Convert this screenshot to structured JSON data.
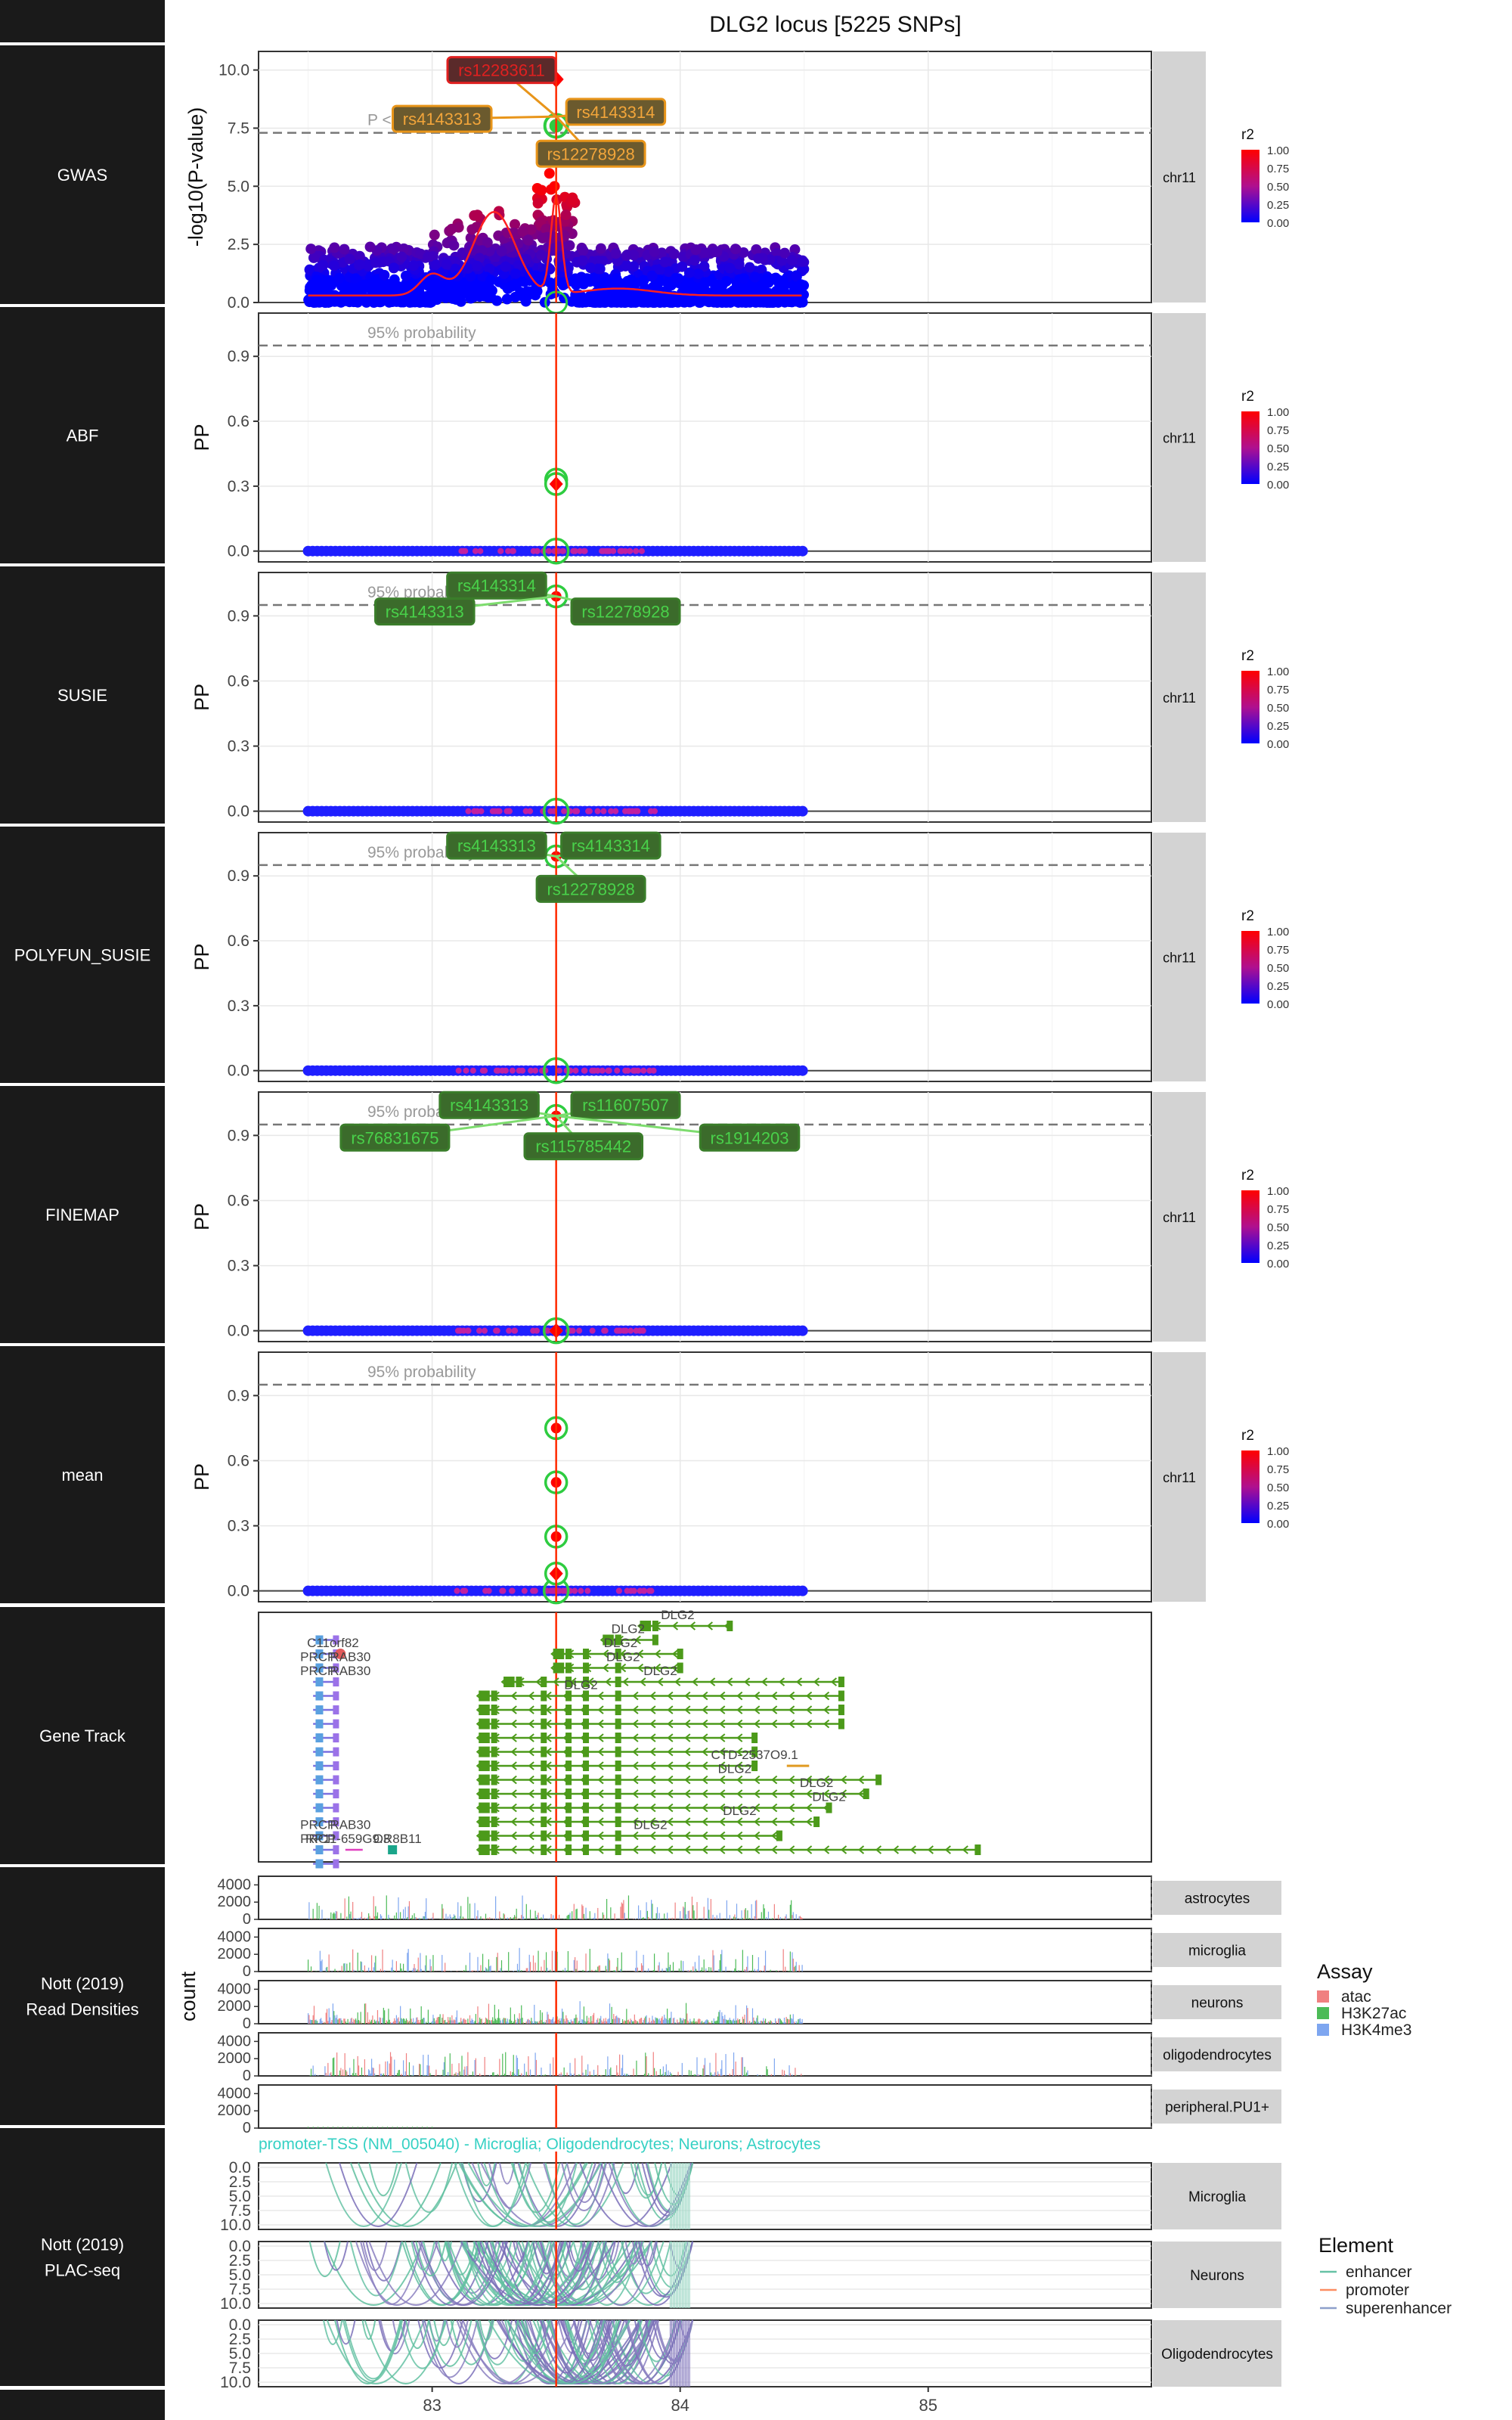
{
  "figure": {
    "title": "DLG2 locus [5225 SNPs]",
    "facet_label": "chr11",
    "lead_line_color": "#ff2a00",
    "strip_bg": "#1a1a1a",
    "facet_bg": "#d3d3d3"
  },
  "rows": [
    {
      "label": "GWAS"
    },
    {
      "label": "ABF"
    },
    {
      "label": "SUSIE"
    },
    {
      "label": "POLYFUN_SUSIE"
    },
    {
      "label": "FINEMAP"
    },
    {
      "label": "mean"
    },
    {
      "label": "Gene Track"
    },
    {
      "label": "Nott (2019)\nRead Densities"
    },
    {
      "label": "Nott (2019)\nPLAC-seq"
    },
    {
      "label": ""
    }
  ],
  "x_axis": {
    "ticks": [
      "83",
      "84",
      "85"
    ],
    "tick_values": [
      83,
      84,
      85
    ],
    "range": [
      82.3,
      85.9
    ]
  },
  "legend_r2": {
    "title": "r2",
    "ticks": [
      "1.00",
      "0.75",
      "0.50",
      "0.25",
      "0.00"
    ],
    "colors": [
      "#ff0000",
      "#0000ff"
    ]
  },
  "legend_assay": {
    "title": "Assay",
    "items": [
      {
        "label": "atac",
        "color": "#f08080"
      },
      {
        "label": "H3K27ac",
        "color": "#4cbb57"
      },
      {
        "label": "H3K4me3",
        "color": "#7ea6f0"
      }
    ]
  },
  "legend_element": {
    "title": "Element",
    "items": [
      {
        "label": "enhancer",
        "color": "#66c2a5"
      },
      {
        "label": "promoter",
        "color": "#fc8d62"
      },
      {
        "label": "superenhancer",
        "color": "#8da0cb"
      }
    ]
  },
  "chart_data": [
    {
      "type": "scatter",
      "name": "GWAS",
      "ylabel": "-log10(P-value)",
      "ylim": [
        0,
        10.8
      ],
      "yticks": [
        "0.0",
        "2.5",
        "5.0",
        "7.5",
        "10.0"
      ],
      "ytick_values": [
        0,
        2.5,
        5,
        7.5,
        10
      ],
      "threshold": {
        "value": 7.3,
        "label": "P < 5e-8"
      },
      "lead_x": 83.5,
      "snp_range": [
        82.5,
        84.5
      ],
      "labels": [
        {
          "text": "rs12283611",
          "x": 83.28,
          "y": 10.0,
          "color": "#e02020",
          "text_color": "#e02020"
        },
        {
          "text": "rs4143313",
          "x": 83.04,
          "y": 7.9,
          "color": "#e8951a",
          "text_color": "#222222"
        },
        {
          "text": "rs4143314",
          "x": 83.74,
          "y": 8.2,
          "color": "#e8951a",
          "text_color": "#222222"
        },
        {
          "text": "rs12278928",
          "x": 83.64,
          "y": 6.4,
          "color": "#e8951a",
          "text_color": "#222222"
        }
      ]
    },
    {
      "type": "scatter",
      "name": "ABF",
      "ylabel": "PP",
      "ylim": [
        -0.05,
        1.1
      ],
      "yticks": [
        "0.0",
        "0.3",
        "0.6",
        "0.9"
      ],
      "ytick_values": [
        0,
        0.3,
        0.6,
        0.9
      ],
      "threshold": {
        "value": 0.95,
        "label": "95% probability"
      },
      "points": [
        {
          "x": 83.5,
          "y": 0.33
        },
        {
          "x": 83.5,
          "y": 0.31
        }
      ],
      "labels": []
    },
    {
      "type": "scatter",
      "name": "SUSIE",
      "ylabel": "PP",
      "ylim": [
        -0.05,
        1.1
      ],
      "yticks": [
        "0.0",
        "0.3",
        "0.6",
        "0.9"
      ],
      "ytick_values": [
        0,
        0.3,
        0.6,
        0.9
      ],
      "threshold": {
        "value": 0.95,
        "label": "95% probability"
      },
      "points": [
        {
          "x": 83.5,
          "y": 0.99
        }
      ],
      "labels": [
        {
          "text": "rs4143314",
          "x": 83.26,
          "y": 1.04
        },
        {
          "text": "rs4143313",
          "x": 82.97,
          "y": 0.92
        },
        {
          "text": "rs12278928",
          "x": 83.78,
          "y": 0.92
        }
      ]
    },
    {
      "type": "scatter",
      "name": "POLYFUN_SUSIE",
      "ylabel": "PP",
      "ylim": [
        -0.05,
        1.1
      ],
      "yticks": [
        "0.0",
        "0.3",
        "0.6",
        "0.9"
      ],
      "ytick_values": [
        0,
        0.3,
        0.6,
        0.9
      ],
      "threshold": {
        "value": 0.95,
        "label": "95% probability"
      },
      "points": [
        {
          "x": 83.5,
          "y": 0.99
        }
      ],
      "labels": [
        {
          "text": "rs4143313",
          "x": 83.26,
          "y": 1.04
        },
        {
          "text": "rs4143314",
          "x": 83.72,
          "y": 1.04
        },
        {
          "text": "rs12278928",
          "x": 83.64,
          "y": 0.84
        }
      ]
    },
    {
      "type": "scatter",
      "name": "FINEMAP",
      "ylabel": "PP",
      "ylim": [
        -0.05,
        1.1
      ],
      "yticks": [
        "0.0",
        "0.3",
        "0.6",
        "0.9"
      ],
      "ytick_values": [
        0,
        0.3,
        0.6,
        0.9
      ],
      "threshold": {
        "value": 0.95,
        "label": "95% probability"
      },
      "points": [
        {
          "x": 83.5,
          "y": 0.99
        },
        {
          "x": 83.5,
          "y": 0.0
        }
      ],
      "labels": [
        {
          "text": "rs4143313",
          "x": 83.23,
          "y": 1.04
        },
        {
          "text": "rs11607507",
          "x": 83.78,
          "y": 1.04
        },
        {
          "text": "rs76831675",
          "x": 82.85,
          "y": 0.89
        },
        {
          "text": "rs115785442",
          "x": 83.61,
          "y": 0.85
        },
        {
          "text": "rs1914203",
          "x": 84.28,
          "y": 0.89
        }
      ]
    },
    {
      "type": "scatter",
      "name": "mean",
      "ylabel": "PP",
      "ylim": [
        -0.05,
        1.1
      ],
      "yticks": [
        "0.0",
        "0.3",
        "0.6",
        "0.9"
      ],
      "ytick_values": [
        0,
        0.3,
        0.6,
        0.9
      ],
      "threshold": {
        "value": 0.95,
        "label": "95% probability"
      },
      "points": [
        {
          "x": 83.5,
          "y": 0.75
        },
        {
          "x": 83.5,
          "y": 0.5
        },
        {
          "x": 83.5,
          "y": 0.25
        },
        {
          "x": 83.5,
          "y": 0.08
        }
      ],
      "labels": []
    },
    {
      "type": "table",
      "name": "Gene Track",
      "gene_labels": [
        {
          "text": "DLG2",
          "x": 83.99,
          "row": 0
        },
        {
          "text": "DLG2",
          "x": 83.79,
          "row": 1
        },
        {
          "text": "DLG2",
          "x": 83.76,
          "row": 2
        },
        {
          "text": "DLG2",
          "x": 83.77,
          "row": 3
        },
        {
          "text": "DLG2",
          "x": 83.92,
          "row": 4
        },
        {
          "text": "C11orf82",
          "x": 82.6,
          "row": 2
        },
        {
          "text": "PRCP",
          "x": 82.54,
          "row": 3
        },
        {
          "text": "RAB30",
          "x": 82.67,
          "row": 3
        },
        {
          "text": "PRCP",
          "x": 82.54,
          "row": 4
        },
        {
          "text": "RAB30",
          "x": 82.67,
          "row": 4
        },
        {
          "text": "DLG2",
          "x": 83.6,
          "row": 5
        },
        {
          "text": "CTD-2537O9.1",
          "x": 84.3,
          "row": 10
        },
        {
          "text": "DLG2",
          "x": 84.22,
          "row": 11
        },
        {
          "text": "DLG2",
          "x": 84.55,
          "row": 12
        },
        {
          "text": "DLG2",
          "x": 84.6,
          "row": 13
        },
        {
          "text": "DLG2",
          "x": 84.24,
          "row": 14
        },
        {
          "text": "DLG2",
          "x": 83.88,
          "row": 15
        },
        {
          "text": "PRCP",
          "x": 82.54,
          "row": 15
        },
        {
          "text": "RAB30",
          "x": 82.67,
          "row": 15
        },
        {
          "text": "PRCP",
          "x": 82.54,
          "row": 16
        },
        {
          "text": "RP11-659G9.3",
          "x": 82.66,
          "row": 16
        },
        {
          "text": "OR8B11",
          "x": 82.86,
          "row": 16
        }
      ]
    },
    {
      "type": "area",
      "name": "Read Densities",
      "ylabel": "count",
      "yticks": [
        "0",
        "2000",
        "4000"
      ],
      "ytick_values": [
        0,
        2000,
        4000
      ],
      "facets": [
        "astrocytes",
        "microglia",
        "neurons",
        "oligodendrocytes",
        "peripheral.PU1+"
      ]
    },
    {
      "type": "line",
      "name": "PLAC-seq",
      "annotation": "promoter-TSS (NM_005040) - Microglia; Oligodendrocytes; Neurons; Astrocytes",
      "yticks": [
        "0.0",
        "2.5",
        "5.0",
        "7.5",
        "10.0"
      ],
      "ytick_values": [
        0,
        2.5,
        5,
        7.5,
        10
      ],
      "facets": [
        "Microglia",
        "Neurons",
        "Oligodendrocytes"
      ]
    }
  ]
}
